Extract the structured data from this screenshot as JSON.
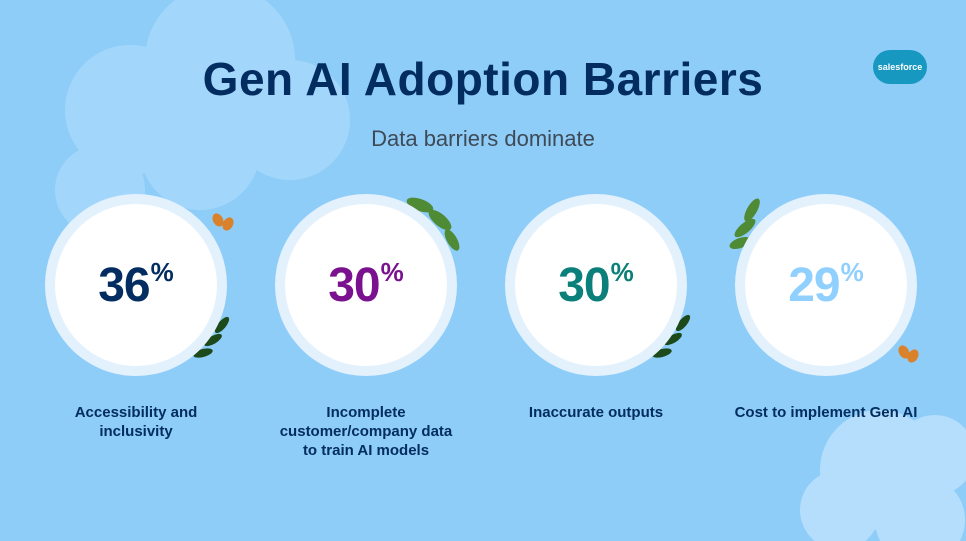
{
  "header": {
    "title": "Gen AI Adoption Barriers",
    "subtitle": "Data barriers dominate",
    "logo": "salesforce"
  },
  "stats": [
    {
      "value": 36,
      "unit": "%",
      "color": "#032d60",
      "label_lines": [
        "Accessibility and",
        "inclusivity"
      ]
    },
    {
      "value": 30,
      "unit": "%",
      "color": "#7a128f",
      "label_lines": [
        "Incomplete",
        "customer/company data",
        "to train AI models"
      ]
    },
    {
      "value": 30,
      "unit": "%",
      "color": "#0b7f7a",
      "label_lines": [
        "Inaccurate outputs"
      ]
    },
    {
      "value": 29,
      "unit": "%",
      "color": "#90d0fe",
      "label_lines": [
        "Cost to implement Gen AI"
      ]
    }
  ]
}
